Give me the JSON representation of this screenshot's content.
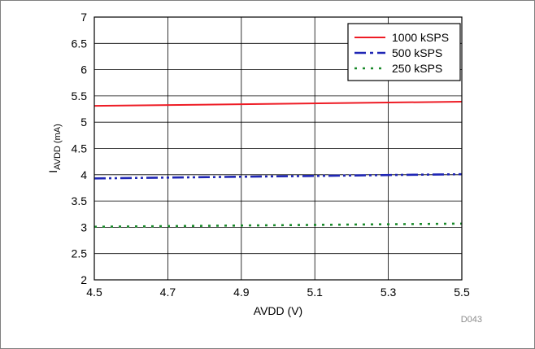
{
  "chart_data": {
    "type": "line",
    "title": "",
    "xlabel": "AVDD (V)",
    "ylabel": {
      "main": "I",
      "subscript": "AVDD (mA)"
    },
    "xlim": [
      4.5,
      5.5
    ],
    "ylim": [
      2,
      7
    ],
    "xticks": [
      4.5,
      4.7,
      4.9,
      5.1,
      5.3,
      5.5
    ],
    "xtick_labels": [
      "4.5",
      "4.7",
      "4.9",
      "5.1",
      "5.3",
      "5.5"
    ],
    "yticks": [
      2,
      2.5,
      3,
      3.5,
      4,
      4.5,
      5,
      5.5,
      6,
      6.5,
      7
    ],
    "ytick_labels": [
      "2",
      "2.5",
      "3",
      "3.5",
      "4",
      "4.5",
      "5",
      "5.5",
      "6",
      "6.5",
      "7"
    ],
    "grid": true,
    "legend_position": "top-right",
    "figure_code": "D043",
    "series": [
      {
        "name": "1000 kSPS",
        "color": "#ee1c25",
        "dash": "solid",
        "x": [
          4.5,
          5.5
        ],
        "y": [
          5.31,
          5.39
        ]
      },
      {
        "name": "500 kSPS",
        "color": "#1f26b5",
        "dash": "long-dash-dot-dot",
        "x": [
          4.5,
          5.5
        ],
        "y": [
          3.93,
          4.01
        ]
      },
      {
        "name": "250 kSPS",
        "color": "#1a8a2b",
        "dash": "dotted",
        "x": [
          4.5,
          5.5
        ],
        "y": [
          3.01,
          3.07
        ]
      }
    ]
  }
}
